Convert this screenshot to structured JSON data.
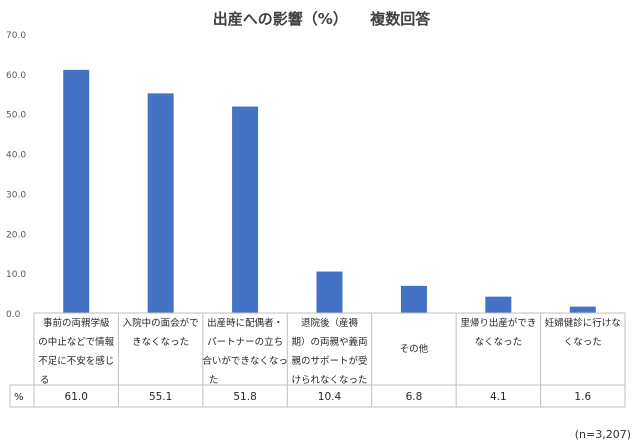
{
  "chart_data": {
    "type": "bar",
    "title": "出産への影響（%）　　複数回答",
    "categories": [
      [
        "事前の両親学級",
        "の中止などで情報",
        "不足に不安を感じ",
        "る"
      ],
      [
        "入院中の面会がで",
        "きなくなった"
      ],
      [
        "出産時に配偶者・",
        "パートナーの立ち",
        "合いができなくなっ",
        "た"
      ],
      [
        "退院後（産褥",
        "期）の両親や義両",
        "親のサポートが受",
        "けられなくなった"
      ],
      [
        "その他"
      ],
      [
        "里帰り出産ができ",
        "なくなった"
      ],
      [
        "妊婦健診に行けな",
        "くなった"
      ]
    ],
    "values": [
      61.0,
      55.1,
      51.8,
      10.4,
      6.8,
      4.1,
      1.6
    ],
    "value_labels": [
      "61.0",
      "55.1",
      "51.8",
      "10.4",
      "6.8",
      "4.1",
      "1.6"
    ],
    "y_ticks": [
      "0.0",
      "10.0",
      "20.0",
      "30.0",
      "40.0",
      "50.0",
      "60.0",
      "70.0"
    ],
    "ylim": [
      0,
      70
    ],
    "table_row_label": "%",
    "sample_size": "(n=3,207)",
    "bar_color": "#4472c4",
    "grid": false
  }
}
